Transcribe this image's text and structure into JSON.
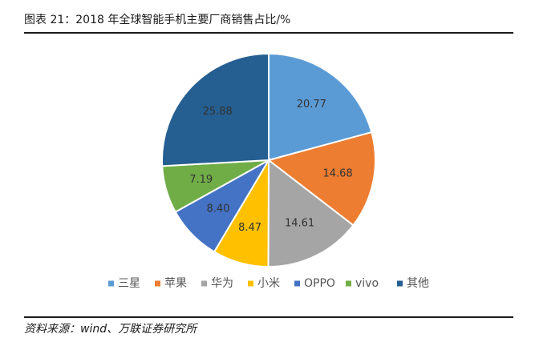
{
  "header": {
    "title": "图表 21：2018 年全球智能手机主要厂商销售占比/%"
  },
  "footer": {
    "source": "资料来源：wind、万联证券研究所"
  },
  "chart_data": {
    "type": "pie",
    "title": "",
    "unit": "%",
    "legend_position": "bottom",
    "start_angle_deg": 0,
    "direction": "clockwise",
    "slices": [
      {
        "name": "三星",
        "value": 20.77,
        "label": "20.77",
        "color": "#5B9BD5"
      },
      {
        "name": "苹果",
        "value": 14.68,
        "label": "14.68",
        "color": "#ED7D31"
      },
      {
        "name": "华为",
        "value": 14.61,
        "label": "14.61",
        "color": "#A5A5A5"
      },
      {
        "name": "小米",
        "value": 8.47,
        "label": "8.47",
        "color": "#FFC000"
      },
      {
        "name": "OPPO",
        "value": 8.4,
        "label": "8.40",
        "color": "#4472C4"
      },
      {
        "name": "vivo",
        "value": 7.19,
        "label": "7.19",
        "color": "#70AD47"
      },
      {
        "name": "其他",
        "value": 25.88,
        "label": "25.88",
        "color": "#255E91"
      }
    ]
  }
}
